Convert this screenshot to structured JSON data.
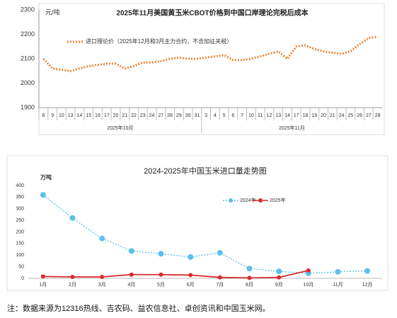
{
  "chart_data": [
    {
      "type": "line",
      "title": "2025年11月美国黄玉米CBOT价格到中国口岸理论完税后成本",
      "y_label": "元/吨",
      "categories": [
        "8",
        "9",
        "10",
        "13",
        "14",
        "15",
        "16",
        "17",
        "20",
        "21",
        "22",
        "23",
        "24",
        "27",
        "28",
        "29",
        "30",
        "31",
        "3",
        "4",
        "5",
        "6",
        "7",
        "10",
        "11",
        "12",
        "13",
        "14",
        "17",
        "18",
        "19",
        "20",
        "21",
        "24",
        "25",
        "26",
        "27",
        "28"
      ],
      "months": [
        "2025年10月",
        "2025年11月"
      ],
      "series": [
        {
          "name": "进口理论价（2025年12月和3月主力合约，不含加征关税）",
          "color": "#e8893a",
          "values": [
            2100,
            2060,
            2055,
            2050,
            2060,
            2070,
            2075,
            2080,
            2080,
            2060,
            2070,
            2085,
            2085,
            2090,
            2100,
            2105,
            2100,
            2100,
            2105,
            2110,
            2115,
            2095,
            2095,
            2100,
            2110,
            2120,
            2130,
            2100,
            2150,
            2155,
            2140,
            2130,
            2125,
            2120,
            2130,
            2160,
            2185,
            2190
          ]
        }
      ],
      "ylim": [
        1900,
        2300
      ],
      "yticks": [
        1900,
        2000,
        2100,
        2200,
        2300
      ],
      "grid": false
    },
    {
      "type": "line",
      "title": "2024-2025年中国玉米进口量走势图",
      "y_label": "万吨",
      "categories": [
        "1月",
        "2月",
        "3月",
        "4月",
        "5月",
        "6月",
        "7月",
        "8月",
        "9月",
        "10月",
        "11月",
        "12月"
      ],
      "series": [
        {
          "name": "2024年",
          "color": "#5bc0eb",
          "values": [
            360,
            260,
            172,
            118,
            106,
            92,
            110,
            42,
            30,
            22,
            28,
            32
          ]
        },
        {
          "name": "2025年",
          "color": "#d92b2b",
          "values": [
            8,
            6,
            6,
            16,
            16,
            14,
            4,
            2,
            4,
            34,
            null,
            null
          ]
        }
      ],
      "ylim": [
        0,
        400
      ],
      "yticks": [
        0,
        50,
        100,
        150,
        200,
        250,
        300,
        350,
        400
      ],
      "grid": false
    }
  ],
  "note": "注：数据来源为12316热线、吉农码、益农信息社、卓创资讯和中国玉米网。"
}
